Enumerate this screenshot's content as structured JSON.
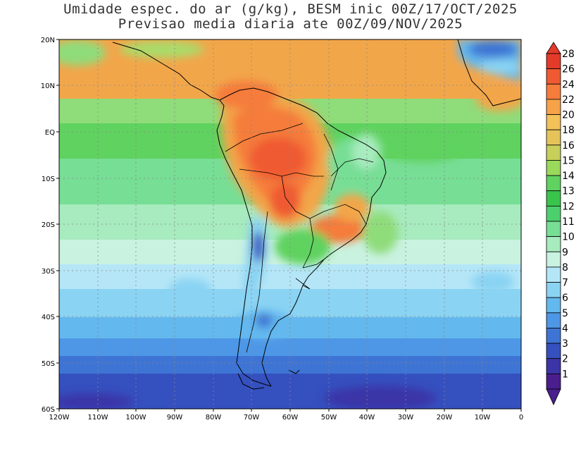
{
  "title": {
    "line1": "Umidade espec. do ar (g/kg), BESM inic 00Z/17/OCT/2025",
    "line2": "Previsao media diaria ate 00Z/09/NOV/2025"
  },
  "map": {
    "region": "South America",
    "lat_ticks": [
      "20N",
      "10N",
      "EQ",
      "10S",
      "20S",
      "30S",
      "40S",
      "50S",
      "60S"
    ],
    "lon_ticks": [
      "120W",
      "110W",
      "100W",
      "90W",
      "80W",
      "70W",
      "60W",
      "50W",
      "40W",
      "30W",
      "20W",
      "10W",
      "0"
    ],
    "lat_range": [
      -60,
      20
    ],
    "lon_range": [
      -120,
      0
    ]
  },
  "colorbar": {
    "labels": [
      "28",
      "26",
      "24",
      "22",
      "20",
      "18",
      "16",
      "15",
      "14",
      "13",
      "12",
      "11",
      "10",
      "9",
      "8",
      "7",
      "6",
      "5",
      "4",
      "3",
      "2",
      "1"
    ],
    "colors": [
      "#e43a2a",
      "#f05a32",
      "#f57c3a",
      "#f6a248",
      "#f2c158",
      "#e6c35a",
      "#c8cf5a",
      "#9ad95a",
      "#5fd25f",
      "#39c54c",
      "#4cd06e",
      "#77de95",
      "#a7ebbe",
      "#c9f2e0",
      "#b4e6f7",
      "#8ad3f3",
      "#63b8ee",
      "#4e97e6",
      "#3e74d4",
      "#3550bf",
      "#3b35a8",
      "#4a1e8e"
    ]
  }
}
